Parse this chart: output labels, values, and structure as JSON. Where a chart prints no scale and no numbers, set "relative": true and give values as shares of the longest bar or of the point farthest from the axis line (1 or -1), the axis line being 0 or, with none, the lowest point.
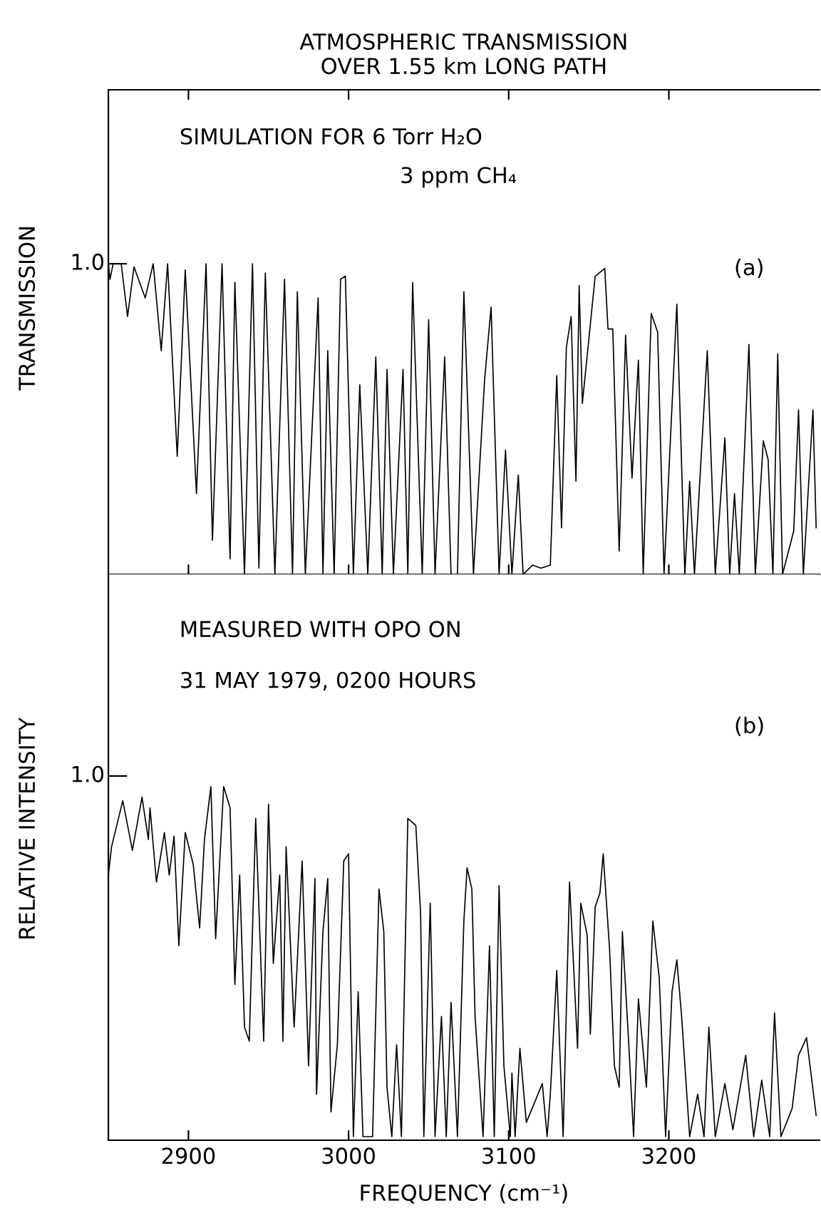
{
  "chart_data": [
    {
      "type": "line",
      "title": "ATMOSPHERIC TRANSMISSION\nOVER 1.55 km LONG PATH",
      "ylabel": "TRANSMISSION",
      "relative": true,
      "xlim": [
        2850,
        3294
      ],
      "xticks": [
        {
          "value": 2900,
          "label": null
        },
        {
          "value": 3000,
          "label": null
        },
        {
          "value": 3100,
          "label": null
        },
        {
          "value": 3200,
          "label": null
        }
      ],
      "tick_labels": false,
      "grid": false,
      "legend": false,
      "annotations": [
        "SIMULATION FOR 6 Torr H₂O",
        "3 ppm CH₄",
        "(a)",
        "1.0"
      ],
      "series": [
        {
          "color": "#000000",
          "x": [
            2850,
            2851,
            2853,
            2858,
            2862,
            2866,
            2873,
            2878,
            2883,
            2887,
            2893,
            2898,
            2905,
            2911,
            2915,
            2921,
            2926,
            2929,
            2935,
            2940,
            2944,
            2948,
            2954,
            2960,
            2965,
            2968,
            2973,
            2981,
            2984,
            2987,
            2991,
            2995,
            2998,
            3003,
            3007,
            3012,
            3017,
            3021,
            3024,
            3028,
            3034,
            3037,
            3040,
            3046,
            3050,
            3054,
            3060,
            3064,
            3068,
            3072,
            3078,
            3085,
            3089,
            3094,
            3098,
            3102,
            3106,
            3109,
            3115,
            3120,
            3126,
            3130,
            3133,
            3136,
            3139,
            3142,
            3144,
            3146,
            3154,
            3160,
            3162,
            3165,
            3169,
            3173,
            3177,
            3181,
            3184,
            3189,
            3193,
            3197,
            3205,
            3210,
            3213,
            3216,
            3224,
            3229,
            3235,
            3238,
            3241,
            3244,
            3250,
            3254,
            3259,
            3262,
            3265,
            3268,
            3271,
            3278,
            3281,
            3284,
            3290,
            3292
          ],
          "values": [
            1.0,
            0.95,
            1.0,
            1.0,
            0.83,
            0.99,
            0.89,
            1.0,
            0.72,
            1.0,
            0.38,
            0.98,
            0.26,
            1.0,
            0.11,
            1.0,
            0.05,
            0.94,
            0.0,
            1.0,
            0.02,
            0.97,
            0.0,
            0.95,
            0.0,
            0.91,
            0.0,
            0.89,
            0.0,
            0.72,
            0.0,
            0.95,
            0.96,
            0.0,
            0.61,
            0.0,
            0.7,
            0.0,
            0.66,
            0.0,
            0.66,
            0.0,
            0.94,
            0.0,
            0.82,
            0.0,
            0.7,
            0.0,
            0.0,
            0.91,
            0.0,
            0.63,
            0.86,
            0.0,
            0.4,
            0.0,
            0.32,
            0.0,
            0.03,
            0.02,
            0.03,
            0.64,
            0.15,
            0.73,
            0.83,
            0.3,
            0.93,
            0.55,
            0.96,
            0.985,
            0.79,
            0.79,
            0.075,
            0.77,
            0.31,
            0.69,
            0.0,
            0.84,
            0.78,
            0.0,
            0.87,
            0.0,
            0.3,
            0.0,
            0.72,
            0.0,
            0.44,
            0.0,
            0.26,
            0.0,
            0.74,
            0.0,
            0.43,
            0.37,
            0.0,
            0.71,
            0.0,
            0.14,
            0.53,
            0.0,
            0.53,
            0.15
          ]
        }
      ]
    },
    {
      "type": "line",
      "xlabel": "FREQUENCY (cm⁻¹)",
      "ylabel": "RELATIVE INTENSITY",
      "relative": true,
      "xlim": [
        2850,
        3294
      ],
      "xticks": [
        2900,
        3000,
        3100,
        3200
      ],
      "tick_labels": "x",
      "grid": false,
      "legend": false,
      "annotations": [
        "MEASURED WITH OPO ON",
        "31 MAY 1979, 0200 HOURS",
        "(b)",
        "1.0"
      ],
      "series": [
        {
          "color": "#000000",
          "x": [
            2850,
            2852,
            2859,
            2865,
            2871,
            2875,
            2876,
            2880,
            2885,
            2888,
            2891,
            2894,
            2898,
            2903,
            2907,
            2910,
            2914,
            2917,
            2922,
            2926,
            2929,
            2932,
            2935,
            2938,
            2942,
            2947,
            2950,
            2953,
            2957,
            2959,
            2961,
            2966,
            2971,
            2975,
            2979,
            2980,
            2984,
            2987,
            2989,
            2993,
            2997,
            3000,
            3003,
            3006,
            3009,
            3015,
            3019,
            3022,
            3024,
            3027,
            3030,
            3033,
            3037,
            3042,
            3045,
            3047,
            3051,
            3054,
            3058,
            3061,
            3064,
            3068,
            3072,
            3074,
            3077,
            3079,
            3084,
            3088,
            3091,
            3094,
            3097,
            3101,
            3102,
            3104,
            3107,
            3111,
            3121,
            3124,
            3126,
            3130,
            3134,
            3138,
            3143,
            3145,
            3149,
            3151,
            3154,
            3157,
            3159,
            3163,
            3166,
            3169,
            3171,
            3175,
            3178,
            3181,
            3186,
            3190,
            3194,
            3198,
            3202,
            3205,
            3208,
            3213,
            3218,
            3222,
            3225,
            3229,
            3235,
            3240,
            3248,
            3253,
            3258,
            3263,
            3266,
            3270,
            3277,
            3281,
            3286,
            3292
          ],
          "values": [
            0.75,
            0.83,
            0.96,
            0.82,
            0.97,
            0.85,
            0.94,
            0.73,
            0.87,
            0.75,
            0.86,
            0.55,
            0.87,
            0.78,
            0.6,
            0.85,
            1.0,
            0.57,
            1.0,
            0.94,
            0.44,
            0.75,
            0.32,
            0.28,
            0.91,
            0.28,
            0.95,
            0.5,
            0.75,
            0.28,
            0.83,
            0.32,
            0.79,
            0.21,
            0.74,
            0.13,
            0.59,
            0.74,
            0.08,
            0.27,
            0.79,
            0.81,
            0.01,
            0.42,
            0.01,
            0.01,
            0.71,
            0.59,
            0.15,
            0.01,
            0.27,
            0.01,
            0.91,
            0.89,
            0.64,
            0.01,
            0.67,
            0.01,
            0.35,
            0.01,
            0.39,
            0.01,
            0.62,
            0.77,
            0.71,
            0.35,
            0.01,
            0.55,
            0.01,
            0.72,
            0.21,
            0.01,
            0.19,
            0.01,
            0.26,
            0.05,
            0.16,
            0.01,
            0.13,
            0.48,
            0.01,
            0.73,
            0.26,
            0.67,
            0.58,
            0.3,
            0.66,
            0.7,
            0.81,
            0.54,
            0.21,
            0.15,
            0.59,
            0.27,
            0.01,
            0.4,
            0.15,
            0.62,
            0.46,
            0.01,
            0.42,
            0.51,
            0.35,
            0.01,
            0.13,
            0.01,
            0.32,
            0.01,
            0.16,
            0.03,
            0.24,
            0.01,
            0.17,
            0.01,
            0.36,
            0.01,
            0.09,
            0.24,
            0.29,
            0.07
          ]
        }
      ]
    }
  ]
}
